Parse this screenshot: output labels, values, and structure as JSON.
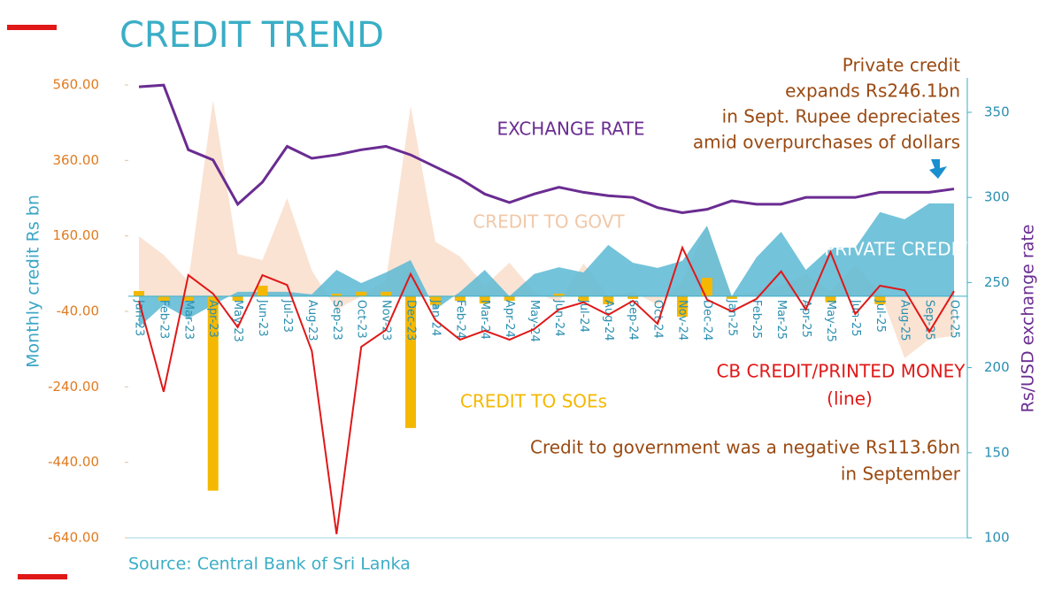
{
  "chart_data": {
    "type": "combo",
    "title": "CREDIT TREND",
    "y_label": "Monthly credit Rs bn",
    "y2_label": "Rs/USD exchange rate",
    "source": "Source: Central Bank of Sri Lanka",
    "categories": [
      "Jan-23",
      "Feb-23",
      "Mar-23",
      "Apr-23",
      "May-23",
      "Jun-23",
      "Jul-23",
      "Aug-23",
      "Sep-23",
      "Oct-23",
      "Nov-23",
      "Dec-23",
      "Jan-24",
      "Feb-24",
      "Mar-24",
      "Apr-24",
      "May-24",
      "Jun-24",
      "Jul-24",
      "Aug-24",
      "Sep-24",
      "Oct-24",
      "Nov-24",
      "Dec-24",
      "Jan-25",
      "Feb-25",
      "Mar-25",
      "Apr-25",
      "May-25",
      "Jun-25",
      "Jul-25",
      "Aug-25",
      "Sep-25",
      "Oct-25"
    ],
    "ylim": [
      -640,
      560
    ],
    "yticks": [
      {
        "value": 560,
        "label": "560.00"
      },
      {
        "value": 360,
        "label": "360.00"
      },
      {
        "value": 160,
        "label": "160.00"
      },
      {
        "value": -40,
        "label": "-40.00"
      },
      {
        "value": -240,
        "label": "-240.00"
      },
      {
        "value": -440,
        "label": "-440.00"
      },
      {
        "value": -640,
        "label": "-640.00"
      }
    ],
    "y2lim": [
      100,
      370
    ],
    "y2ticks": [
      100,
      150,
      200,
      250,
      300,
      350
    ],
    "series": [
      {
        "name": "CREDIT TO GOVT",
        "type": "area",
        "color": "#f8d9c4",
        "values": [
          159,
          110,
          40,
          520,
          112,
          96,
          260,
          68,
          -35,
          0,
          40,
          504,
          145,
          105,
          28,
          89,
          12,
          -16,
          87,
          0,
          12,
          -23,
          40,
          187,
          0,
          12,
          28,
          59,
          12,
          82,
          12,
          -164,
          -113.6,
          -105
        ]
      },
      {
        "name": "PRIVATE CREDIT",
        "type": "area",
        "color": "#5bb8d4",
        "values": [
          -82,
          -23,
          -59,
          -23,
          12,
          12,
          12,
          5,
          70,
          35,
          63,
          96,
          -35,
          12,
          70,
          0,
          59,
          77,
          63,
          136,
          89,
          75,
          94,
          187,
          0,
          103,
          171,
          70,
          129,
          129,
          223,
          204,
          246.1,
          246
        ]
      },
      {
        "name": "CREDIT TO SOEs",
        "type": "bar",
        "color": "#f5b800",
        "values": [
          14,
          -12,
          -12,
          -515,
          -12,
          28,
          0,
          0,
          7,
          12,
          12,
          -349,
          -23,
          -12,
          -19,
          -12,
          0,
          7,
          -12,
          -21,
          -7,
          0,
          -54,
          49,
          -7,
          0,
          0,
          0,
          -16,
          0,
          -21,
          0,
          0,
          0
        ]
      },
      {
        "name": "CB CREDIT/PRINTED MONEY",
        "type": "line",
        "color": "#e01818",
        "values": [
          -12,
          -253,
          56,
          7,
          -82,
          56,
          30,
          -145,
          -630,
          -134,
          -89,
          59,
          -63,
          -115,
          -91,
          -115,
          -87,
          -35,
          -16,
          -49,
          -12,
          -73,
          129,
          -9,
          -40,
          -7,
          66,
          -35,
          117,
          -47,
          28,
          16,
          -94,
          14
        ]
      },
      {
        "name": "EXCHANGE RATE",
        "type": "line",
        "axis": "y2",
        "color": "#6a2c91",
        "values": [
          365,
          366,
          328,
          322,
          296,
          309,
          330,
          323,
          325,
          328,
          330,
          325,
          318,
          311,
          302,
          297,
          302,
          306,
          303,
          301,
          300,
          294,
          291,
          293,
          298,
          296,
          296,
          300,
          300,
          300,
          303,
          303,
          303,
          305
        ]
      }
    ],
    "annotations": [
      {
        "lines": [
          "Private credit",
          "expands Rs246.1bn",
          "in Sept. Rupee depreciates",
          "amid overpurchases of dollars"
        ]
      },
      {
        "lines": [
          "(line)"
        ]
      },
      {
        "lines": [
          "Credit to government was a negative Rs113.6bn",
          "in September"
        ]
      }
    ]
  }
}
